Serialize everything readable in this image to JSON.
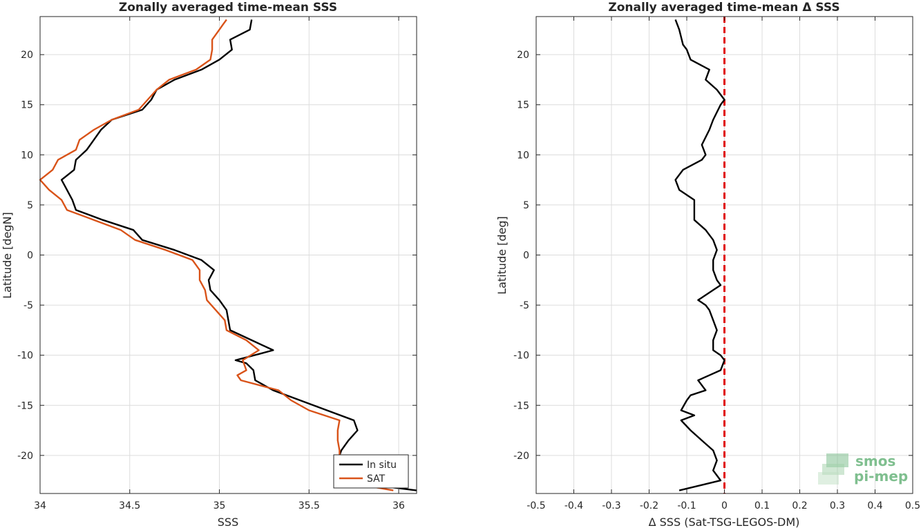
{
  "chart_data": [
    {
      "type": "line",
      "title": "Zonally averaged time-mean SSS",
      "xlabel": "SSS",
      "ylabel": "Latitude [degN]",
      "xlim": [
        34,
        36.1
      ],
      "ylim": [
        -23.8,
        23.8
      ],
      "xticks": [
        "34",
        "34.5",
        "35",
        "35.5",
        "36"
      ],
      "xtick_values": [
        34,
        34.5,
        35,
        35.5,
        36
      ],
      "yticks": [
        "-20",
        "-15",
        "-10",
        "-5",
        "0",
        "5",
        "10",
        "15",
        "20"
      ],
      "ytick_values": [
        -20,
        -15,
        -10,
        -5,
        0,
        5,
        10,
        15,
        20
      ],
      "grid": true,
      "legend_position": "bottom-right",
      "series": [
        {
          "name": "In situ",
          "color": "#000000",
          "points": [
            [
              36.1,
              -23.5
            ],
            [
              35.65,
              -22.5
            ],
            [
              35.65,
              -21.5
            ],
            [
              35.66,
              -20.5
            ],
            [
              35.68,
              -19.5
            ],
            [
              35.72,
              -18.5
            ],
            [
              35.77,
              -17.5
            ],
            [
              35.75,
              -16.5
            ],
            [
              35.6,
              -15.5
            ],
            [
              35.45,
              -14.5
            ],
            [
              35.3,
              -13.5
            ],
            [
              35.2,
              -12.5
            ],
            [
              35.19,
              -11.5
            ],
            [
              35.15,
              -10.8
            ],
            [
              35.09,
              -10.5
            ],
            [
              35.3,
              -9.5
            ],
            [
              35.18,
              -8.5
            ],
            [
              35.06,
              -7.5
            ],
            [
              35.05,
              -6.5
            ],
            [
              35.04,
              -5.5
            ],
            [
              35.0,
              -4.5
            ],
            [
              34.95,
              -3.5
            ],
            [
              34.94,
              -2.5
            ],
            [
              34.97,
              -1.5
            ],
            [
              34.9,
              -0.5
            ],
            [
              34.75,
              0.5
            ],
            [
              34.57,
              1.5
            ],
            [
              34.52,
              2.5
            ],
            [
              34.35,
              3.5
            ],
            [
              34.2,
              4.5
            ],
            [
              34.18,
              5.5
            ],
            [
              34.15,
              6.5
            ],
            [
              34.12,
              7.5
            ],
            [
              34.19,
              8.5
            ],
            [
              34.2,
              9.5
            ],
            [
              34.26,
              10.5
            ],
            [
              34.3,
              11.5
            ],
            [
              34.34,
              12.5
            ],
            [
              34.4,
              13.5
            ],
            [
              34.57,
              14.5
            ],
            [
              34.62,
              15.5
            ],
            [
              34.65,
              16.5
            ],
            [
              34.75,
              17.5
            ],
            [
              34.9,
              18.5
            ],
            [
              35.0,
              19.5
            ],
            [
              35.07,
              20.5
            ],
            [
              35.06,
              21.5
            ],
            [
              35.17,
              22.5
            ],
            [
              35.18,
              23.5
            ]
          ]
        },
        {
          "name": "SAT",
          "color": "#d95319",
          "points": [
            [
              35.97,
              -23.5
            ],
            [
              35.65,
              -22.5
            ],
            [
              35.65,
              -21.5
            ],
            [
              35.67,
              -20.5
            ],
            [
              35.67,
              -19.5
            ],
            [
              35.66,
              -18.5
            ],
            [
              35.66,
              -17.5
            ],
            [
              35.67,
              -16.5
            ],
            [
              35.5,
              -15.5
            ],
            [
              35.4,
              -14.5
            ],
            [
              35.33,
              -13.5
            ],
            [
              35.12,
              -12.5
            ],
            [
              35.1,
              -12.0
            ],
            [
              35.15,
              -11.5
            ],
            [
              35.13,
              -10.5
            ],
            [
              35.22,
              -9.5
            ],
            [
              35.15,
              -8.5
            ],
            [
              35.04,
              -7.5
            ],
            [
              35.03,
              -6.5
            ],
            [
              34.98,
              -5.5
            ],
            [
              34.93,
              -4.5
            ],
            [
              34.92,
              -3.5
            ],
            [
              34.89,
              -2.5
            ],
            [
              34.89,
              -1.5
            ],
            [
              34.85,
              -0.5
            ],
            [
              34.7,
              0.5
            ],
            [
              34.53,
              1.5
            ],
            [
              34.45,
              2.5
            ],
            [
              34.3,
              3.5
            ],
            [
              34.15,
              4.5
            ],
            [
              34.12,
              5.5
            ],
            [
              34.05,
              6.5
            ],
            [
              34.0,
              7.5
            ],
            [
              34.07,
              8.5
            ],
            [
              34.1,
              9.5
            ],
            [
              34.2,
              10.5
            ],
            [
              34.22,
              11.5
            ],
            [
              34.3,
              12.5
            ],
            [
              34.4,
              13.5
            ],
            [
              34.55,
              14.5
            ],
            [
              34.6,
              15.5
            ],
            [
              34.65,
              16.5
            ],
            [
              34.72,
              17.5
            ],
            [
              34.87,
              18.5
            ],
            [
              34.95,
              19.5
            ],
            [
              34.96,
              20.5
            ],
            [
              34.96,
              21.5
            ],
            [
              35.0,
              22.5
            ],
            [
              35.02,
              23.0
            ],
            [
              35.04,
              23.5
            ]
          ]
        }
      ]
    },
    {
      "type": "line",
      "title": "Zonally averaged time-mean Δ SSS",
      "xlabel": "Δ SSS (Sat-TSG-LEGOS-DM)",
      "ylabel": "Latitude [deg]",
      "xlim": [
        -0.5,
        0.5
      ],
      "ylim": [
        -23.8,
        23.8
      ],
      "xticks": [
        "-0.5",
        "-0.4",
        "-0.3",
        "-0.2",
        "-0.1",
        "0",
        "0.1",
        "0.2",
        "0.3",
        "0.4",
        "0.5"
      ],
      "xtick_values": [
        -0.5,
        -0.4,
        -0.3,
        -0.2,
        -0.1,
        0,
        0.1,
        0.2,
        0.3,
        0.4,
        0.5
      ],
      "yticks": [
        "-20",
        "-15",
        "-10",
        "-5",
        "0",
        "5",
        "10",
        "15",
        "20"
      ],
      "ytick_values": [
        -20,
        -15,
        -10,
        -5,
        0,
        5,
        10,
        15,
        20
      ],
      "grid": true,
      "reference_line": {
        "x": 0,
        "color": "#e00000",
        "style": "dashed"
      },
      "series": [
        {
          "name": "",
          "color": "#000000",
          "points": [
            [
              -0.12,
              -23.5
            ],
            [
              -0.01,
              -22.5
            ],
            [
              -0.03,
              -21.5
            ],
            [
              -0.02,
              -20.5
            ],
            [
              -0.03,
              -19.5
            ],
            [
              -0.06,
              -18.5
            ],
            [
              -0.09,
              -17.5
            ],
            [
              -0.115,
              -16.5
            ],
            [
              -0.08,
              -16.0
            ],
            [
              -0.115,
              -15.5
            ],
            [
              -0.1,
              -14.5
            ],
            [
              -0.09,
              -14.0
            ],
            [
              -0.05,
              -13.5
            ],
            [
              -0.06,
              -13.0
            ],
            [
              -0.07,
              -12.5
            ],
            [
              -0.04,
              -12.0
            ],
            [
              -0.01,
              -11.5
            ],
            [
              0.0,
              -10.5
            ],
            [
              -0.01,
              -10.0
            ],
            [
              -0.03,
              -9.5
            ],
            [
              -0.03,
              -8.5
            ],
            [
              -0.02,
              -7.5
            ],
            [
              -0.03,
              -6.5
            ],
            [
              -0.04,
              -5.5
            ],
            [
              -0.05,
              -5.0
            ],
            [
              -0.07,
              -4.5
            ],
            [
              -0.03,
              -3.5
            ],
            [
              -0.01,
              -3.0
            ],
            [
              -0.02,
              -2.5
            ],
            [
              -0.03,
              -1.5
            ],
            [
              -0.03,
              -0.5
            ],
            [
              -0.02,
              0.5
            ],
            [
              -0.03,
              1.5
            ],
            [
              -0.05,
              2.5
            ],
            [
              -0.08,
              3.5
            ],
            [
              -0.08,
              4.5
            ],
            [
              -0.08,
              5.5
            ],
            [
              -0.12,
              6.5
            ],
            [
              -0.13,
              7.5
            ],
            [
              -0.11,
              8.5
            ],
            [
              -0.06,
              9.5
            ],
            [
              -0.05,
              10.0
            ],
            [
              -0.06,
              11.0
            ],
            [
              -0.04,
              12.5
            ],
            [
              -0.03,
              13.5
            ],
            [
              -0.01,
              15.0
            ],
            [
              0.0,
              15.5
            ],
            [
              -0.02,
              16.5
            ],
            [
              -0.05,
              17.5
            ],
            [
              -0.04,
              18.5
            ],
            [
              -0.09,
              19.5
            ],
            [
              -0.1,
              20.5
            ],
            [
              -0.11,
              21.0
            ],
            [
              -0.12,
              22.5
            ],
            [
              -0.13,
              23.5
            ]
          ]
        }
      ]
    }
  ],
  "logo": {
    "line1": "smos",
    "line2": "pi-mep"
  }
}
